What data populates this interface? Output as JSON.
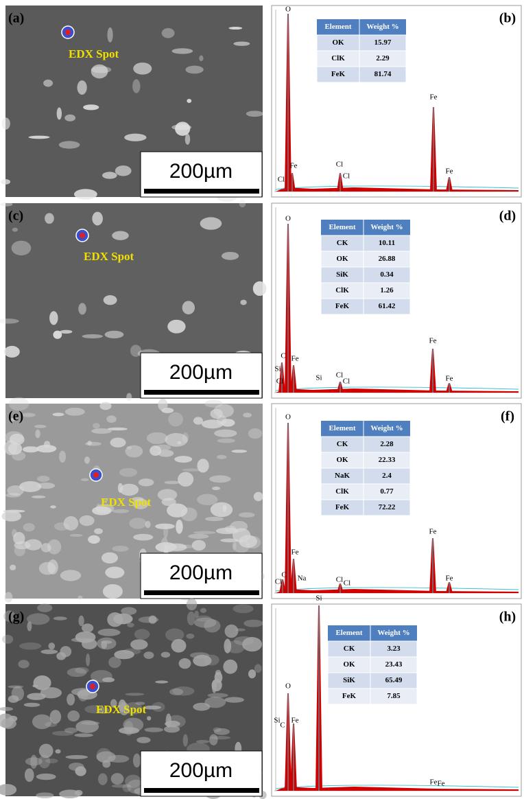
{
  "panels": [
    {
      "image_label": "(a)",
      "spot_label": "EDX Spot",
      "scale_bar": "200µm",
      "spectrum_label": "(b)",
      "table": {
        "header": [
          "Element",
          "Weight %"
        ],
        "rows": [
          [
            "OK",
            "15.97"
          ],
          [
            "ClK",
            "2.29"
          ],
          [
            "FeK",
            "81.74"
          ]
        ]
      },
      "peaks": [
        "O",
        "Cl",
        "Fe",
        "Cl",
        "Cl",
        "Fe",
        "Fe"
      ]
    },
    {
      "image_label": "(c)",
      "spot_label": "EDX Spot",
      "scale_bar": "200µm",
      "spectrum_label": "(d)",
      "table": {
        "header": [
          "Element",
          "Weight %"
        ],
        "rows": [
          [
            "CK",
            "10.11"
          ],
          [
            "OK",
            "26.88"
          ],
          [
            "SiK",
            "0.34"
          ],
          [
            "ClK",
            "1.26"
          ],
          [
            "FeK",
            "61.42"
          ]
        ]
      },
      "peaks": [
        "O",
        "Si",
        "C",
        "Cl",
        "Fe",
        "Si",
        "Cl",
        "Cl",
        "Fe",
        "Fe"
      ]
    },
    {
      "image_label": "(e)",
      "spot_label": "EDX Spot",
      "scale_bar": "200µm",
      "spectrum_label": "(f)",
      "table": {
        "header": [
          "Element",
          "Weight %"
        ],
        "rows": [
          [
            "CK",
            "2.28"
          ],
          [
            "OK",
            "22.33"
          ],
          [
            "NaK",
            "2.4"
          ],
          [
            "ClK",
            "0.77"
          ],
          [
            "FeK",
            "72.22"
          ]
        ]
      },
      "peaks": [
        "O",
        "Fe",
        "Cl",
        "C",
        "Na",
        "Cl",
        "Cl",
        "Fe",
        "Fe"
      ]
    },
    {
      "image_label": "(g)",
      "spot_label": "EDX Spot",
      "scale_bar": "200µm",
      "spectrum_label": "(h)",
      "table": {
        "header": [
          "Element",
          "Weight %"
        ],
        "rows": [
          [
            "CK",
            "3.23"
          ],
          [
            "OK",
            "23.43"
          ],
          [
            "SiK",
            "65.49"
          ],
          [
            "FeK",
            "7.85"
          ]
        ]
      },
      "peaks": [
        "Si",
        "O",
        "Si",
        "C",
        "Fe",
        "Fe",
        "Fe"
      ]
    }
  ]
}
